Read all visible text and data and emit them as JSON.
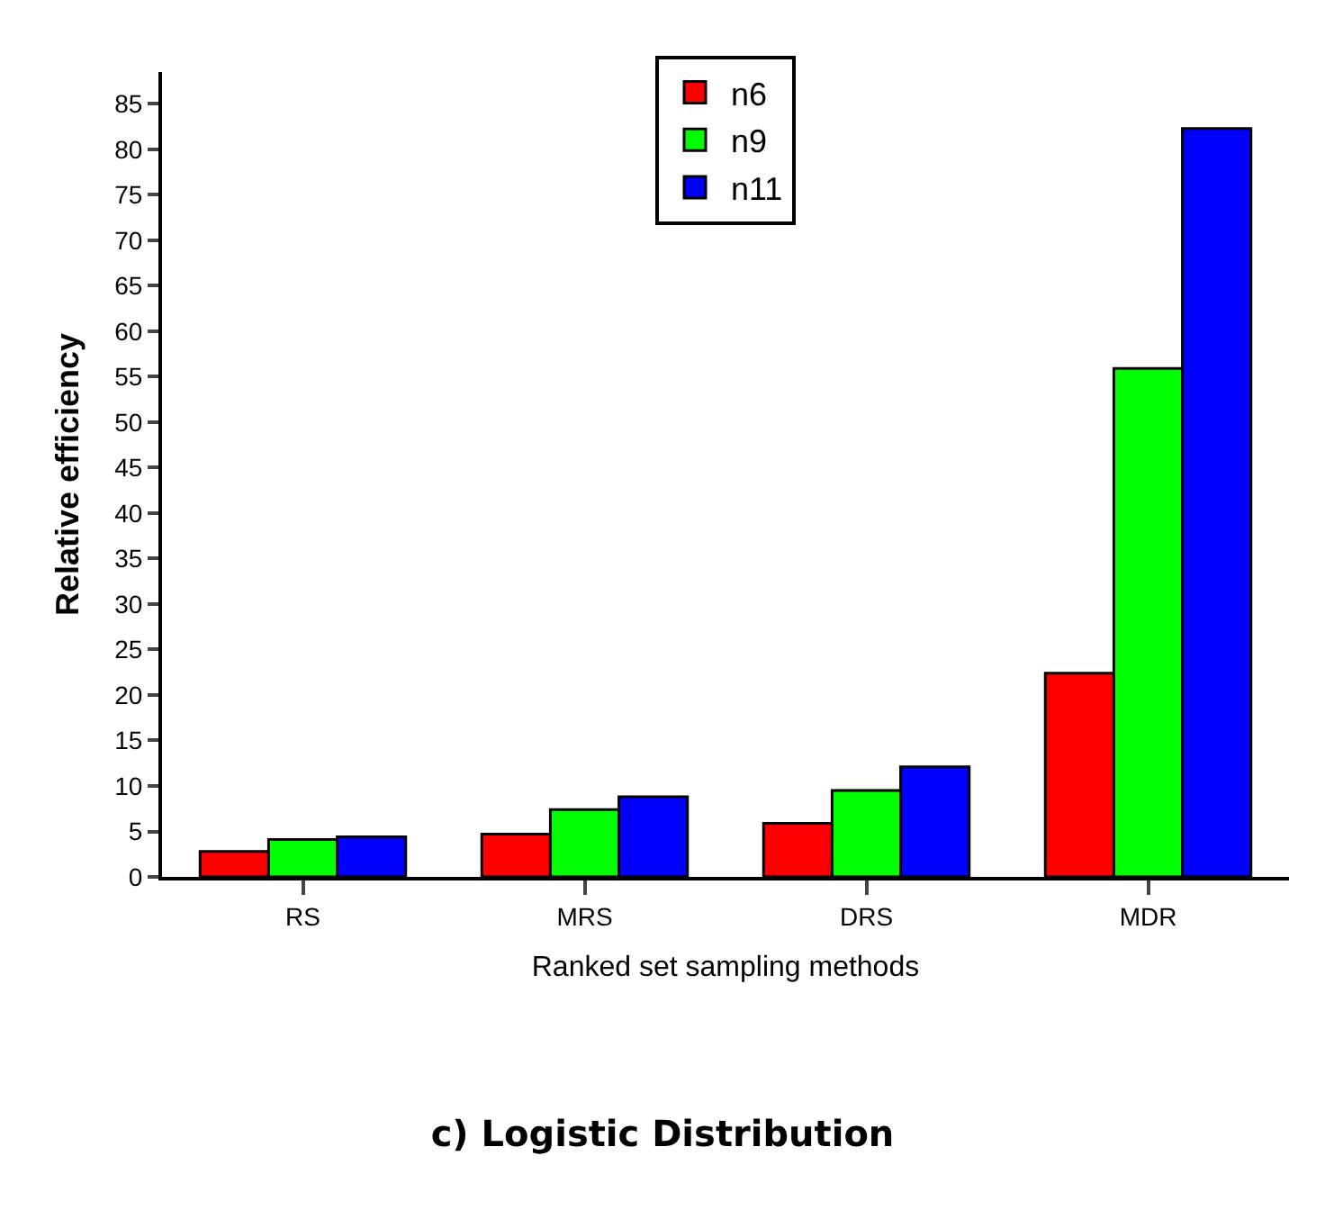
{
  "chart_data": {
    "type": "bar",
    "title": "c) Logistic Distribution",
    "xlabel": "Ranked set sampling methods",
    "ylabel": "Relative efficiency",
    "categories": [
      "RS",
      "MRS",
      "DRS",
      "MDR"
    ],
    "series": [
      {
        "name": "n6",
        "color": "#ff0000",
        "values": [
          2.8,
          4.7,
          5.9,
          22.4
        ]
      },
      {
        "name": "n9",
        "color": "#00ff00",
        "values": [
          4.1,
          7.4,
          9.5,
          55.9
        ]
      },
      {
        "name": "n11",
        "color": "#0000ff",
        "values": [
          4.4,
          8.8,
          12.1,
          82.3
        ]
      }
    ],
    "ylim": [
      0,
      88.5
    ],
    "yticks": [
      0,
      5,
      10,
      15,
      20,
      25,
      30,
      35,
      40,
      45,
      50,
      55,
      60,
      65,
      70,
      75,
      80,
      85
    ],
    "legend": "top"
  }
}
